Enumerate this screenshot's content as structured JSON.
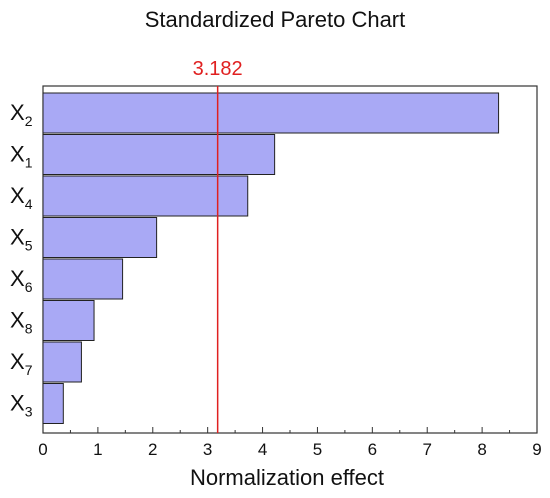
{
  "chart_data": {
    "type": "bar",
    "orientation": "horizontal",
    "title": "Standardized Pareto Chart",
    "xlabel": "Normalization effect",
    "ylabel": "",
    "xlim": [
      0,
      9
    ],
    "xticks": [
      0,
      1,
      2,
      3,
      4,
      5,
      6,
      7,
      8,
      9
    ],
    "categories": [
      {
        "main": "X",
        "sub": "2"
      },
      {
        "main": "X",
        "sub": "1"
      },
      {
        "main": "X",
        "sub": "4"
      },
      {
        "main": "X",
        "sub": "5"
      },
      {
        "main": "X",
        "sub": "6"
      },
      {
        "main": "X",
        "sub": "8"
      },
      {
        "main": "X",
        "sub": "7"
      },
      {
        "main": "X",
        "sub": "3"
      }
    ],
    "values": [
      8.3,
      4.22,
      3.73,
      2.07,
      1.45,
      0.93,
      0.7,
      0.37
    ],
    "reference_line": {
      "value": 3.182,
      "label": "3.182"
    },
    "colors": {
      "bar_fill": "#a9a9f5",
      "bar_stroke": "#222222",
      "reference": "#e02020",
      "axis": "#333333"
    },
    "grid": false,
    "legend": "none"
  }
}
